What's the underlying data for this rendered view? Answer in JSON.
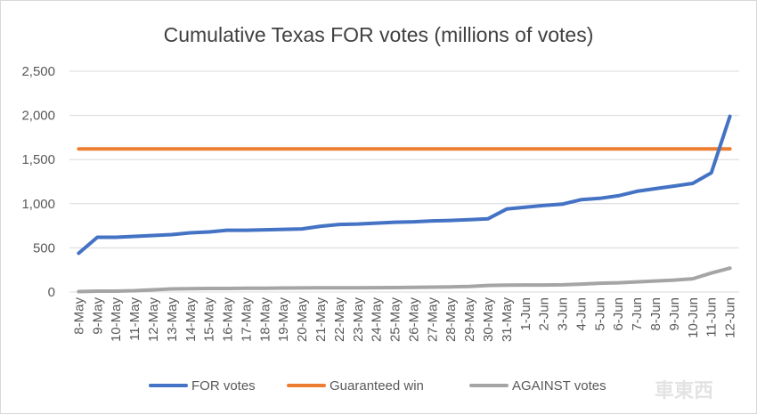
{
  "chart_data": {
    "type": "line",
    "title": "Cumulative Texas FOR votes (millions of votes)",
    "xlabel": "",
    "ylabel": "",
    "ylim": [
      0,
      2500
    ],
    "yticks": [
      "0",
      "500",
      "1,000",
      "1,500",
      "2,000",
      "2,500"
    ],
    "ytick_values": [
      0,
      500,
      1000,
      1500,
      2000,
      2500
    ],
    "grid": "horizontal",
    "legend_position": "bottom",
    "categories": [
      "8-May",
      "9-May",
      "10-May",
      "11-May",
      "12-May",
      "13-May",
      "14-May",
      "15-May",
      "16-May",
      "17-May",
      "18-May",
      "19-May",
      "20-May",
      "21-May",
      "22-May",
      "23-May",
      "24-May",
      "25-May",
      "26-May",
      "27-May",
      "28-May",
      "29-May",
      "30-May",
      "31-May",
      "1-Jun",
      "2-Jun",
      "3-Jun",
      "4-Jun",
      "5-Jun",
      "6-Jun",
      "7-Jun",
      "8-Jun",
      "9-Jun",
      "10-Jun",
      "11-Jun",
      "12-Jun"
    ],
    "series": [
      {
        "name": "FOR votes",
        "color": "#4472c4",
        "values": [
          440,
          620,
          620,
          630,
          640,
          650,
          670,
          680,
          700,
          700,
          705,
          710,
          715,
          745,
          765,
          770,
          780,
          790,
          795,
          805,
          810,
          820,
          830,
          940,
          960,
          980,
          995,
          1045,
          1060,
          1090,
          1140,
          1170,
          1200,
          1230,
          1350,
          1990
        ]
      },
      {
        "name": "Guaranteed win",
        "color": "#ed7d31",
        "values": [
          1620,
          1620,
          1620,
          1620,
          1620,
          1620,
          1620,
          1620,
          1620,
          1620,
          1620,
          1620,
          1620,
          1620,
          1620,
          1620,
          1620,
          1620,
          1620,
          1620,
          1620,
          1620,
          1620,
          1620,
          1620,
          1620,
          1620,
          1620,
          1620,
          1620,
          1620,
          1620,
          1620,
          1620,
          1620,
          1620
        ]
      },
      {
        "name": "AGAINST votes",
        "color": "#a5a5a5",
        "values": [
          5,
          10,
          10,
          15,
          25,
          35,
          38,
          40,
          40,
          42,
          43,
          45,
          46,
          47,
          48,
          48,
          49,
          50,
          52,
          55,
          58,
          62,
          75,
          78,
          80,
          80,
          82,
          90,
          100,
          105,
          115,
          125,
          135,
          150,
          215,
          270
        ]
      }
    ]
  },
  "watermark": "車東西"
}
